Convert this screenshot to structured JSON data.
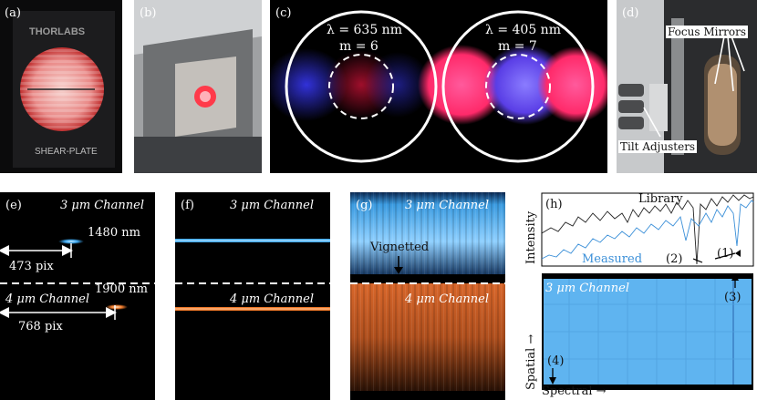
{
  "panels": {
    "a": {
      "label": "(a)",
      "brand": "THORLABS",
      "plate_text": "SHEAR-PLATE"
    },
    "b": {
      "label": "(b)"
    },
    "c": {
      "label": "(c)",
      "left": {
        "lambda": "λ = 635 nm",
        "m": "m = 6"
      },
      "right": {
        "lambda": "λ = 405 nm",
        "m": "m = 7"
      }
    },
    "d": {
      "label": "(d)",
      "focus": "Focus Mirrors",
      "tilt": "Tilt Adjusters"
    },
    "e": {
      "label": "(e)",
      "ch3": "3 μm Channel",
      "ch4": "4 μm Channel",
      "wl1": "1480 nm",
      "pix1": "473 pix",
      "wl2": "1900 nm",
      "pix2": "768 pix"
    },
    "f": {
      "label": "(f)",
      "ch3": "3 μm Channel",
      "ch4": "4 μm Channel"
    },
    "g": {
      "label": "(g)",
      "ch3": "3 μm Channel",
      "ch4": "4 μm Channel",
      "vignetted": "Vignetted"
    },
    "h": {
      "label": "(h)",
      "library": "Library",
      "measured": "Measured",
      "ylabel": "Intensity",
      "a1": "(1)",
      "a2": "(2)",
      "a3": "(3)",
      "a4": "(4)",
      "ch3": "3 μm Channel",
      "spatial": "Spatial →",
      "spectral": "Spectral →"
    }
  },
  "colors": {
    "blue": "#3ea8f0",
    "orange": "#f07a2a",
    "pink": "#ff3c78",
    "violet": "#6a4cff"
  }
}
